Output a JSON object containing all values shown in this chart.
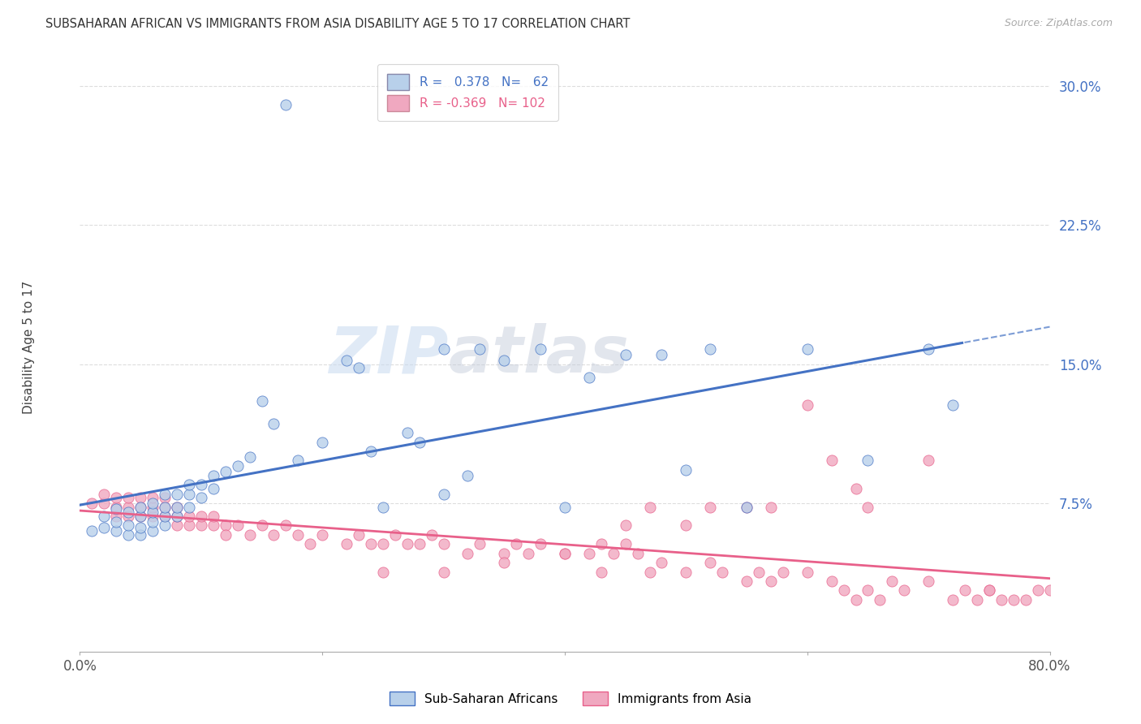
{
  "title": "SUBSAHARAN AFRICAN VS IMMIGRANTS FROM ASIA DISABILITY AGE 5 TO 17 CORRELATION CHART",
  "source": "Source: ZipAtlas.com",
  "ylabel": "Disability Age 5 to 17",
  "yticks": [
    0.0,
    0.075,
    0.15,
    0.225,
    0.3
  ],
  "ytick_labels": [
    "",
    "7.5%",
    "15.0%",
    "22.5%",
    "30.0%"
  ],
  "xlim": [
    0.0,
    0.8
  ],
  "ylim": [
    -0.005,
    0.315
  ],
  "color_blue": "#b8d0ea",
  "color_pink": "#f0a8c0",
  "color_blue_line": "#4472c4",
  "color_pink_line": "#e8608a",
  "color_blue_dark": "#2255aa",
  "background_color": "#ffffff",
  "watermark_zip": "ZIP",
  "watermark_atlas": "atlas",
  "grid_color": "#dddddd",
  "blue_scatter_x": [
    0.01,
    0.02,
    0.02,
    0.03,
    0.03,
    0.03,
    0.04,
    0.04,
    0.04,
    0.05,
    0.05,
    0.05,
    0.05,
    0.06,
    0.06,
    0.06,
    0.06,
    0.07,
    0.07,
    0.07,
    0.07,
    0.08,
    0.08,
    0.08,
    0.09,
    0.09,
    0.09,
    0.1,
    0.1,
    0.11,
    0.11,
    0.12,
    0.13,
    0.14,
    0.15,
    0.16,
    0.17,
    0.18,
    0.2,
    0.22,
    0.23,
    0.24,
    0.25,
    0.27,
    0.3,
    0.33,
    0.35,
    0.38,
    0.4,
    0.42,
    0.5,
    0.52,
    0.55,
    0.6,
    0.65,
    0.7,
    0.72,
    0.28,
    0.32,
    0.45,
    0.48,
    0.3
  ],
  "blue_scatter_y": [
    0.06,
    0.062,
    0.068,
    0.06,
    0.065,
    0.072,
    0.058,
    0.063,
    0.07,
    0.058,
    0.062,
    0.068,
    0.073,
    0.06,
    0.065,
    0.07,
    0.075,
    0.063,
    0.068,
    0.073,
    0.08,
    0.068,
    0.073,
    0.08,
    0.073,
    0.08,
    0.085,
    0.078,
    0.085,
    0.083,
    0.09,
    0.092,
    0.095,
    0.1,
    0.13,
    0.118,
    0.29,
    0.098,
    0.108,
    0.152,
    0.148,
    0.103,
    0.073,
    0.113,
    0.08,
    0.158,
    0.152,
    0.158,
    0.073,
    0.143,
    0.093,
    0.158,
    0.073,
    0.158,
    0.098,
    0.158,
    0.128,
    0.108,
    0.09,
    0.155,
    0.155,
    0.158
  ],
  "pink_scatter_x": [
    0.01,
    0.02,
    0.02,
    0.03,
    0.03,
    0.03,
    0.04,
    0.04,
    0.04,
    0.05,
    0.05,
    0.05,
    0.06,
    0.06,
    0.06,
    0.07,
    0.07,
    0.07,
    0.08,
    0.08,
    0.08,
    0.09,
    0.09,
    0.1,
    0.1,
    0.11,
    0.11,
    0.12,
    0.12,
    0.13,
    0.14,
    0.15,
    0.16,
    0.17,
    0.18,
    0.19,
    0.2,
    0.22,
    0.23,
    0.24,
    0.25,
    0.26,
    0.27,
    0.28,
    0.29,
    0.3,
    0.32,
    0.33,
    0.35,
    0.36,
    0.37,
    0.38,
    0.4,
    0.42,
    0.43,
    0.44,
    0.45,
    0.46,
    0.47,
    0.48,
    0.5,
    0.52,
    0.53,
    0.55,
    0.56,
    0.57,
    0.58,
    0.6,
    0.62,
    0.63,
    0.64,
    0.65,
    0.66,
    0.67,
    0.68,
    0.7,
    0.72,
    0.73,
    0.74,
    0.75,
    0.76,
    0.77,
    0.78,
    0.79,
    0.8,
    0.6,
    0.62,
    0.55,
    0.57,
    0.5,
    0.52,
    0.45,
    0.47,
    0.43,
    0.4,
    0.35,
    0.3,
    0.25,
    0.64,
    0.7,
    0.65,
    0.75
  ],
  "pink_scatter_y": [
    0.075,
    0.075,
    0.08,
    0.073,
    0.068,
    0.078,
    0.073,
    0.068,
    0.078,
    0.073,
    0.068,
    0.078,
    0.068,
    0.073,
    0.078,
    0.068,
    0.073,
    0.078,
    0.063,
    0.068,
    0.073,
    0.063,
    0.068,
    0.063,
    0.068,
    0.063,
    0.068,
    0.063,
    0.058,
    0.063,
    0.058,
    0.063,
    0.058,
    0.063,
    0.058,
    0.053,
    0.058,
    0.053,
    0.058,
    0.053,
    0.053,
    0.058,
    0.053,
    0.053,
    0.058,
    0.053,
    0.048,
    0.053,
    0.048,
    0.053,
    0.048,
    0.053,
    0.048,
    0.048,
    0.053,
    0.048,
    0.053,
    0.048,
    0.038,
    0.043,
    0.038,
    0.043,
    0.038,
    0.033,
    0.038,
    0.033,
    0.038,
    0.038,
    0.033,
    0.028,
    0.023,
    0.028,
    0.023,
    0.033,
    0.028,
    0.033,
    0.023,
    0.028,
    0.023,
    0.028,
    0.023,
    0.023,
    0.023,
    0.028,
    0.028,
    0.128,
    0.098,
    0.073,
    0.073,
    0.063,
    0.073,
    0.063,
    0.073,
    0.038,
    0.048,
    0.043,
    0.038,
    0.038,
    0.083,
    0.098,
    0.073,
    0.028
  ]
}
